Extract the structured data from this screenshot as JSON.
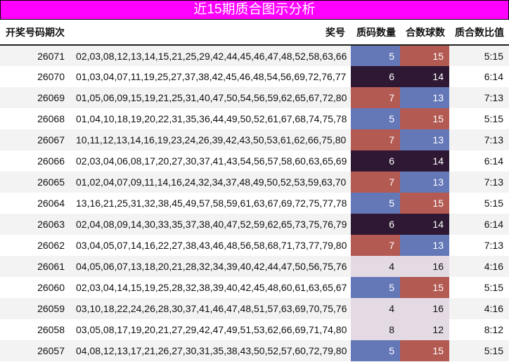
{
  "title": "近15期质合图示分析",
  "headers": [
    "开奖号码期次",
    "奖号",
    "质码数量",
    "合数球数",
    "质合数比值"
  ],
  "colors": {
    "blue": "#6478b8",
    "red": "#b35a52",
    "dark": "#2e1833",
    "light": "#e4dae4"
  },
  "rows": [
    {
      "period": "26071",
      "numbers": "02,03,08,12,13,14,15,21,25,29,42,44,45,46,47,48,52,58,63,66",
      "prime": "5",
      "composite": "15",
      "ratio": "5:15"
    },
    {
      "period": "26070",
      "numbers": "01,03,04,07,11,19,25,27,37,38,42,45,46,48,54,56,69,72,76,77",
      "prime": "6",
      "composite": "14",
      "ratio": "6:14"
    },
    {
      "period": "26069",
      "numbers": "01,05,06,09,15,19,21,25,31,40,47,50,54,56,59,62,65,67,72,80",
      "prime": "7",
      "composite": "13",
      "ratio": "7:13"
    },
    {
      "period": "26068",
      "numbers": "01,04,10,18,19,20,22,31,35,36,44,49,50,52,61,67,68,74,75,78",
      "prime": "5",
      "composite": "15",
      "ratio": "5:15"
    },
    {
      "period": "26067",
      "numbers": "10,11,12,13,14,16,19,23,24,26,39,42,43,50,53,61,62,66,75,80",
      "prime": "7",
      "composite": "13",
      "ratio": "7:13"
    },
    {
      "period": "26066",
      "numbers": "02,03,04,06,08,17,20,27,30,37,41,43,54,56,57,58,60,63,65,69",
      "prime": "6",
      "composite": "14",
      "ratio": "6:14"
    },
    {
      "period": "26065",
      "numbers": "01,02,04,07,09,11,14,16,24,32,34,37,48,49,50,52,53,59,63,70",
      "prime": "7",
      "composite": "13",
      "ratio": "7:13"
    },
    {
      "period": "26064",
      "numbers": "13,16,21,25,31,32,38,45,49,57,58,59,61,63,67,69,72,75,77,78",
      "prime": "5",
      "composite": "15",
      "ratio": "5:15"
    },
    {
      "period": "26063",
      "numbers": "02,04,08,09,14,30,33,35,37,38,40,47,52,59,62,65,73,75,76,79",
      "prime": "6",
      "composite": "14",
      "ratio": "6:14"
    },
    {
      "period": "26062",
      "numbers": "03,04,05,07,14,16,22,27,38,43,46,48,56,58,68,71,73,77,79,80",
      "prime": "7",
      "composite": "13",
      "ratio": "7:13"
    },
    {
      "period": "26061",
      "numbers": "04,05,06,07,13,18,20,21,28,32,34,39,40,42,44,47,50,56,75,76",
      "prime": "4",
      "composite": "16",
      "ratio": "4:16"
    },
    {
      "period": "26060",
      "numbers": "02,03,04,14,15,19,25,28,32,38,39,40,42,45,48,60,61,63,65,67",
      "prime": "5",
      "composite": "15",
      "ratio": "5:15"
    },
    {
      "period": "26059",
      "numbers": "03,10,18,22,24,26,28,30,37,41,46,47,48,51,57,63,69,70,75,76",
      "prime": "4",
      "composite": "16",
      "ratio": "4:16"
    },
    {
      "period": "26058",
      "numbers": "03,05,08,17,19,20,21,27,29,42,47,49,51,53,62,66,69,71,74,80",
      "prime": "8",
      "composite": "12",
      "ratio": "8:12"
    },
    {
      "period": "26057",
      "numbers": "04,08,12,13,17,21,26,27,30,31,35,38,43,50,52,57,60,72,79,80",
      "prime": "5",
      "composite": "15",
      "ratio": "5:15"
    }
  ]
}
